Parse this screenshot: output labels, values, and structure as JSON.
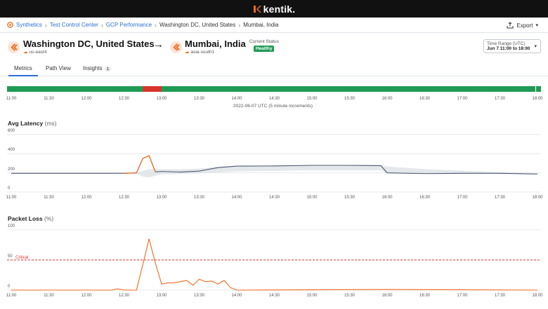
{
  "brand": {
    "name": "kentik."
  },
  "breadcrumb": {
    "items": [
      "Synthetics",
      "Test Control Center",
      "GCP Performance"
    ],
    "current_parts": [
      "Washington DC, United States",
      "Mumbai, India"
    ]
  },
  "toolbar": {
    "export_label": "Export"
  },
  "test": {
    "source_name": "Washington DC, United States",
    "source_site": "us-east4",
    "target_name": "Mumbai, India",
    "target_site": "asia-south1",
    "status_label": "Current Status",
    "status_value": "Healthy",
    "colors": {
      "healthy": "#1f9a55",
      "critical": "#d9342b",
      "accent": "#f06a1d"
    }
  },
  "time_range": {
    "label": "Time Range (UTC)",
    "value": "Jun 7 11:00 to 18:00"
  },
  "tabs": [
    {
      "label": "Metrics",
      "active": true
    },
    {
      "label": "Path View",
      "active": false
    },
    {
      "label": "Insights",
      "badge": "1",
      "active": false
    }
  ],
  "timeline": {
    "ticks": [
      "11:00",
      "11:30",
      "12:00",
      "12:30",
      "13:00",
      "13:30",
      "14:00",
      "14:30",
      "15:00",
      "15:30",
      "16:00",
      "16:30",
      "17:00",
      "17:30",
      "18:00"
    ],
    "caption": "2022-06-07 UTC (5 minute increments)",
    "critical_window": [
      "12:45",
      "13:00"
    ]
  },
  "chart_data": [
    {
      "type": "line",
      "title": "Avg Latency",
      "unit": "(ms)",
      "ylim": [
        0,
        600
      ],
      "yticks": [
        "600",
        "400",
        "200",
        "0"
      ],
      "x": [
        "11:00",
        "11:30",
        "12:00",
        "12:30",
        "12:40",
        "12:45",
        "12:50",
        "12:55",
        "13:00",
        "13:15",
        "13:30",
        "13:45",
        "14:00",
        "14:30",
        "15:00",
        "15:30",
        "15:55",
        "16:00",
        "16:30",
        "17:00",
        "17:30",
        "18:00"
      ],
      "series": [
        {
          "values": [
            195,
            195,
            195,
            195,
            200,
            350,
            380,
            210,
            215,
            208,
            218,
            255,
            270,
            272,
            278,
            278,
            275,
            200,
            192,
            195,
            195,
            188
          ]
        }
      ],
      "band": {
        "upper": [
          195,
          195,
          195,
          195,
          200,
          220,
          240,
          240,
          238,
          238,
          245,
          262,
          272,
          275,
          280,
          280,
          280,
          265,
          240,
          222,
          206,
          192
        ],
        "lower": [
          195,
          195,
          195,
          195,
          190,
          160,
          150,
          170,
          185,
          188,
          195,
          205,
          215,
          220,
          225,
          225,
          225,
          195,
          190,
          192,
          195,
          188
        ]
      }
    },
    {
      "type": "line",
      "title": "Packet Loss",
      "unit": "(%)",
      "ylim": [
        0,
        100
      ],
      "yticks": [
        "100",
        "50",
        "0"
      ],
      "threshold": {
        "label": "Critical",
        "value": 50
      },
      "x": [
        "11:00",
        "12:20",
        "12:25",
        "12:30",
        "12:35",
        "12:40",
        "12:50",
        "12:55",
        "13:00",
        "13:05",
        "13:10",
        "13:15",
        "13:20",
        "13:25",
        "13:30",
        "13:35",
        "13:40",
        "13:45",
        "13:50",
        "13:55",
        "14:00",
        "14:05",
        "16:00",
        "18:00"
      ],
      "series": [
        {
          "values": [
            0,
            0,
            2,
            0,
            0,
            0,
            85,
            45,
            10,
            12,
            12,
            14,
            16,
            8,
            18,
            14,
            15,
            10,
            16,
            4,
            0,
            0,
            1,
            0
          ]
        }
      ]
    }
  ]
}
